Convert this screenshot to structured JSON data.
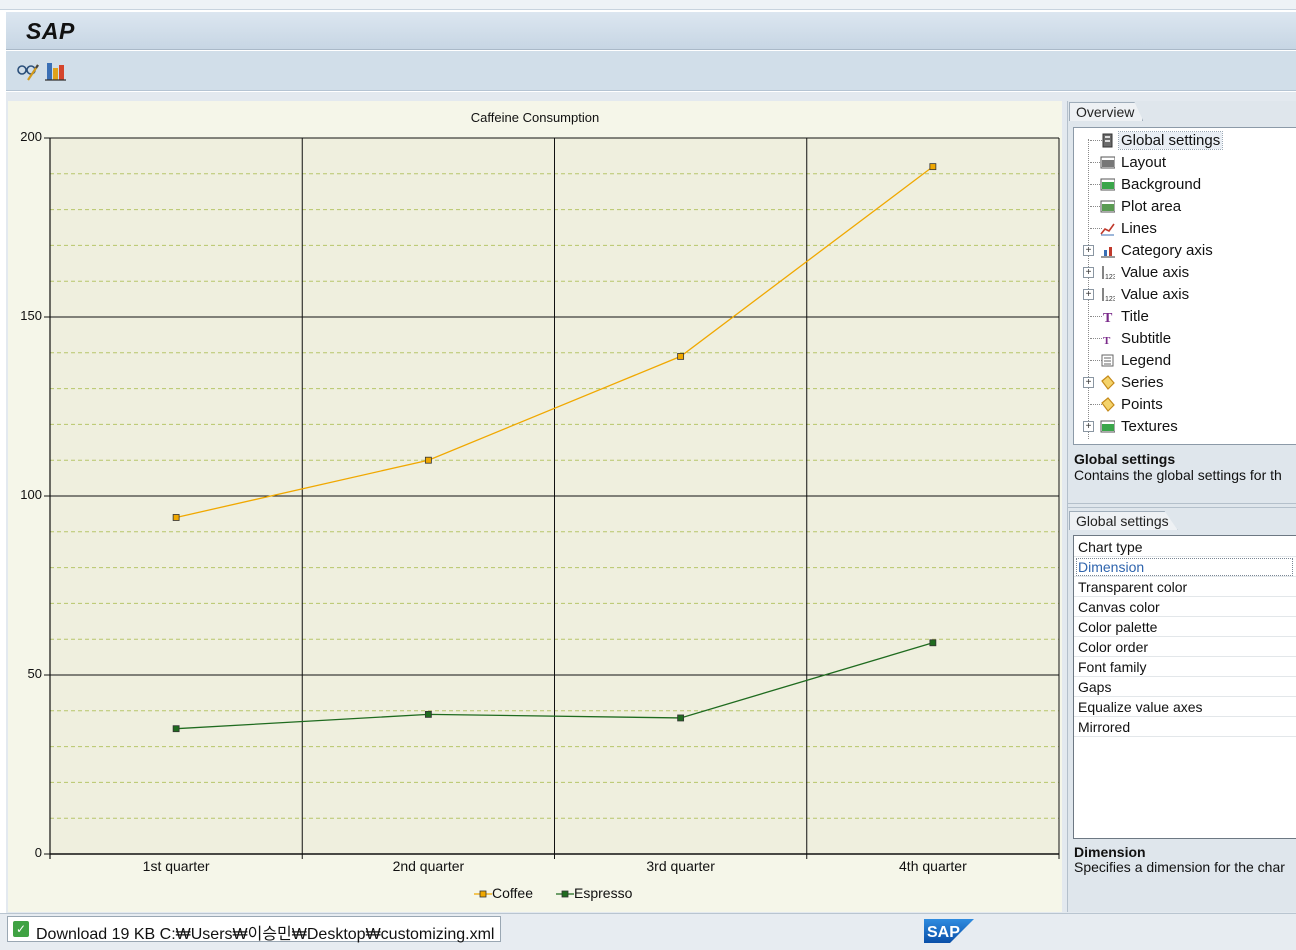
{
  "app": {
    "title": "SAP"
  },
  "toolbar": {
    "buttons": [
      {
        "icon": "glasses-customize-icon"
      },
      {
        "icon": "bar-chart-icon"
      }
    ]
  },
  "chart_data": {
    "type": "line",
    "title": "Caffeine Consumption",
    "categories": [
      "1st quarter",
      "2nd quarter",
      "3rd quarter",
      "4th quarter"
    ],
    "series": [
      {
        "name": "Coffee",
        "values": [
          94,
          110,
          139,
          192
        ],
        "color": "#f0a800"
      },
      {
        "name": "Espresso",
        "values": [
          35,
          39,
          38,
          59
        ],
        "color": "#1f6b1f"
      }
    ],
    "ylim": [
      0,
      200
    ],
    "yticks": [
      0,
      50,
      100,
      150,
      200
    ],
    "grid": true,
    "legend": "bottom",
    "background": "#f5f6e9",
    "plot_background": "#efefde"
  },
  "overview": {
    "tab_label": "Overview",
    "items": [
      {
        "label": "Global settings",
        "icon": "settings-icon",
        "expandable": false,
        "selected": true
      },
      {
        "label": "Layout",
        "icon": "layout-icon",
        "expandable": false
      },
      {
        "label": "Background",
        "icon": "background-icon",
        "expandable": false
      },
      {
        "label": "Plot area",
        "icon": "plot-area-icon",
        "expandable": false
      },
      {
        "label": "Lines",
        "icon": "lines-icon",
        "expandable": false
      },
      {
        "label": "Category axis",
        "icon": "category-axis-icon",
        "expandable": true
      },
      {
        "label": "Value axis",
        "icon": "value-axis-icon",
        "expandable": true
      },
      {
        "label": "Value axis",
        "icon": "value-axis-icon",
        "expandable": true
      },
      {
        "label": "Title",
        "icon": "title-icon",
        "expandable": false
      },
      {
        "label": "Subtitle",
        "icon": "subtitle-icon",
        "expandable": false
      },
      {
        "label": "Legend",
        "icon": "legend-icon",
        "expandable": false
      },
      {
        "label": "Series",
        "icon": "series-icon",
        "expandable": true
      },
      {
        "label": "Points",
        "icon": "points-icon",
        "expandable": false
      },
      {
        "label": "Textures",
        "icon": "textures-icon",
        "expandable": true
      }
    ],
    "info_title": "Global settings",
    "info_text": "Contains the global settings for th"
  },
  "properties": {
    "tab_label": "Global settings",
    "rows": [
      {
        "label": "Chart type"
      },
      {
        "label": "Dimension",
        "selected": true
      },
      {
        "label": "Transparent color"
      },
      {
        "label": "Canvas color"
      },
      {
        "label": "Color palette"
      },
      {
        "label": "Color order"
      },
      {
        "label": "Font family"
      },
      {
        "label": "Gaps"
      },
      {
        "label": "Equalize value axes"
      },
      {
        "label": "Mirrored"
      }
    ],
    "info_title": "Dimension",
    "info_text": "Specifies a dimension for the char"
  },
  "status": {
    "message": "Download 19 KB C:₩Users₩이승민₩Desktop₩customizing.xml",
    "logo_text": "SAP"
  }
}
